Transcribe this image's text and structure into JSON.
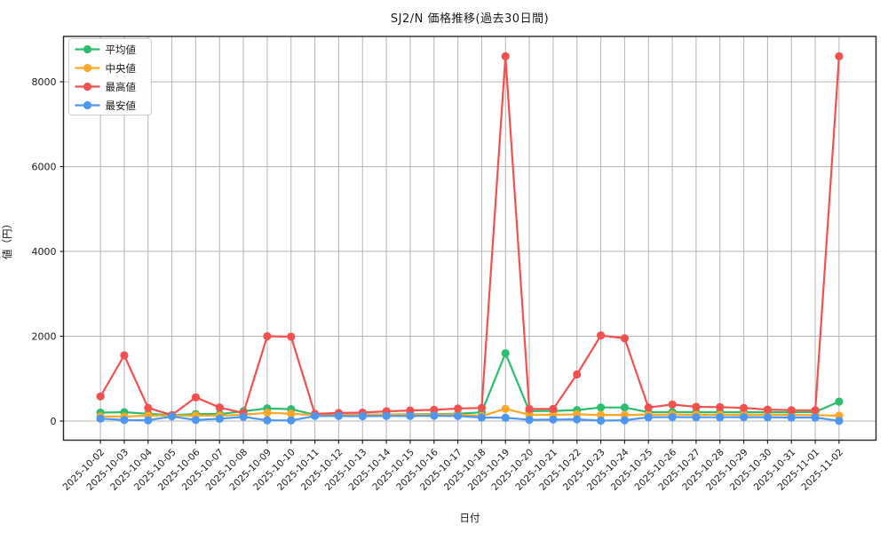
{
  "title": "SJ2/N 価格推移(過去30日間)",
  "chart_data": {
    "type": "line",
    "title": "SJ2/N 価格推移(過去30日間)",
    "xlabel": "日付",
    "ylabel": "値（円）",
    "grid": true,
    "legend_position": "upper left",
    "ylim": [
      -450,
      9070
    ],
    "yticks": [
      0,
      2000,
      4000,
      6000,
      8000
    ],
    "x": [
      "2025-10-02",
      "2025-10-03",
      "2025-10-04",
      "2025-10-05",
      "2025-10-06",
      "2025-10-07",
      "2025-10-08",
      "2025-10-09",
      "2025-10-10",
      "2025-10-11",
      "2025-10-12",
      "2025-10-13",
      "2025-10-14",
      "2025-10-15",
      "2025-10-16",
      "2025-10-17",
      "2025-10-18",
      "2025-10-19",
      "2025-10-20",
      "2025-10-21",
      "2025-10-22",
      "2025-10-23",
      "2025-10-24",
      "2025-10-25",
      "2025-10-26",
      "2025-10-27",
      "2025-10-28",
      "2025-10-29",
      "2025-10-30",
      "2025-10-31",
      "2025-11-01",
      "2025-11-02"
    ],
    "series": [
      {
        "name": "平均値",
        "color": "#2dbd6e",
        "values": [
          200,
          210,
          170,
          140,
          165,
          165,
          230,
          300,
          280,
          150,
          150,
          150,
          155,
          160,
          165,
          175,
          205,
          1600,
          235,
          240,
          260,
          320,
          320,
          210,
          215,
          210,
          210,
          210,
          210,
          205,
          215,
          460
        ]
      },
      {
        "name": "中央値",
        "color": "#ffa726",
        "values": [
          110,
          105,
          130,
          130,
          130,
          130,
          150,
          195,
          175,
          140,
          145,
          145,
          150,
          150,
          155,
          155,
          120,
          290,
          150,
          150,
          160,
          145,
          145,
          150,
          155,
          150,
          150,
          150,
          150,
          145,
          140,
          125
        ]
      },
      {
        "name": "最高値",
        "color": "#f4514e",
        "values": [
          580,
          1550,
          310,
          140,
          560,
          320,
          190,
          2000,
          1990,
          170,
          190,
          200,
          230,
          250,
          265,
          295,
          310,
          8600,
          285,
          285,
          1100,
          2020,
          1950,
          320,
          390,
          335,
          330,
          310,
          270,
          255,
          255,
          8600
        ]
      },
      {
        "name": "最安値",
        "color": "#4d97f2",
        "values": [
          60,
          25,
          20,
          110,
          25,
          55,
          100,
          20,
          15,
          120,
          120,
          115,
          120,
          120,
          125,
          120,
          85,
          80,
          30,
          35,
          40,
          10,
          20,
          90,
          95,
          90,
          90,
          95,
          90,
          85,
          85,
          5
        ]
      }
    ],
    "style": {
      "grid_color": "#b3b3b3",
      "spine_color": "#262626",
      "tick_text_color": "#1a1a1a",
      "legend_border_color": "#cccccc",
      "background": "#ffffff"
    }
  }
}
